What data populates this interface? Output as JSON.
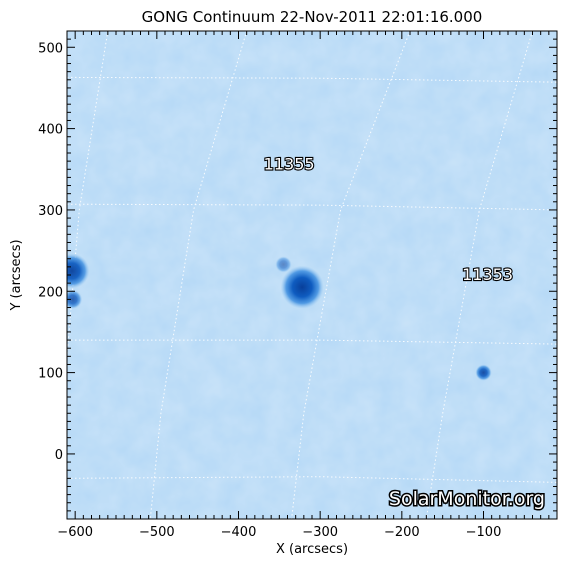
{
  "title": "GONG Continuum 22-Nov-2011 22:01:16.000",
  "watermark": "SolarMonitor.org",
  "x_axis": {
    "label": "X (arcsecs)",
    "range": [
      -610,
      -10
    ],
    "ticks": [
      -600,
      -500,
      -400,
      -300,
      -200,
      -100
    ]
  },
  "y_axis": {
    "label": "Y (arcsecs)",
    "range": [
      -80,
      520
    ],
    "ticks": [
      0,
      100,
      200,
      300,
      400,
      500
    ]
  },
  "colors": {
    "background": "#b4d8f6",
    "grid": "#ffffff",
    "sunspot_core": "#0a4fb0",
    "sunspot_penumbra": "#3f8fe0",
    "frame": "#000000"
  },
  "active_regions": [
    {
      "number": "11355",
      "label_x": -338,
      "label_y": 350
    },
    {
      "number": "11353",
      "label_x": -95,
      "label_y": 214
    }
  ],
  "sunspots": [
    {
      "id": "spot-11355-main",
      "x": -322,
      "y": 205,
      "radius": 16,
      "intensity": 1.0
    },
    {
      "id": "spot-11355-small",
      "x": -345,
      "y": 233,
      "radius": 6,
      "intensity": 0.55
    },
    {
      "id": "spot-11353",
      "x": -100,
      "y": 100,
      "radius": 6,
      "intensity": 0.9
    },
    {
      "id": "spot-edge-upper",
      "x": -604,
      "y": 225,
      "radius": 13,
      "intensity": 0.95
    },
    {
      "id": "spot-edge-lower",
      "x": -603,
      "y": 190,
      "radius": 7,
      "intensity": 0.8
    }
  ],
  "grid_lines": {
    "latitude": [
      [
        [
          -610,
          463
        ],
        [
          -300,
          462
        ],
        [
          -10,
          457
        ]
      ],
      [
        [
          -610,
          307
        ],
        [
          -300,
          306
        ],
        [
          -10,
          300
        ]
      ],
      [
        [
          -610,
          140
        ],
        [
          -300,
          140
        ],
        [
          -10,
          135
        ]
      ],
      [
        [
          -610,
          -30
        ],
        [
          -300,
          -28
        ],
        [
          -10,
          -35
        ]
      ]
    ],
    "longitude": [
      [
        [
          -560,
          520
        ],
        [
          -595,
          300
        ],
        [
          -610,
          120
        ]
      ],
      [
        [
          -390,
          520
        ],
        [
          -455,
          300
        ],
        [
          -495,
          50
        ],
        [
          -508,
          -80
        ]
      ],
      [
        [
          -190,
          520
        ],
        [
          -275,
          300
        ],
        [
          -320,
          50
        ],
        [
          -335,
          -80
        ]
      ],
      [
        [
          -40,
          520
        ],
        [
          -105,
          300
        ],
        [
          -150,
          50
        ],
        [
          -170,
          -80
        ]
      ]
    ]
  }
}
